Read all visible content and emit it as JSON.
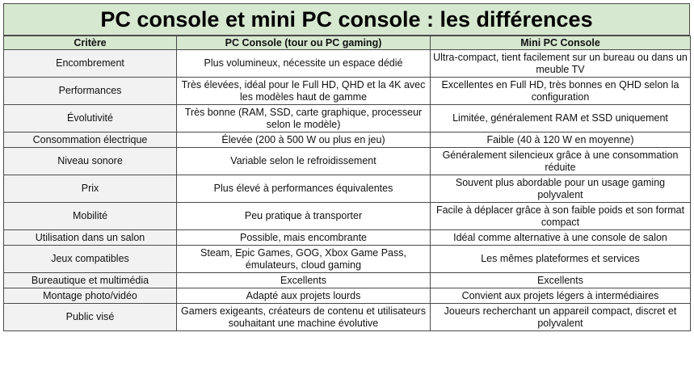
{
  "title": "PC console et mini PC console : les différences",
  "table": {
    "headers": [
      "Critère",
      "PC Console (tour ou PC gaming)",
      "Mini PC Console"
    ],
    "rows": [
      [
        "Encombrement",
        "Plus volumineux, nécessite un espace dédié",
        "Ultra-compact, tient facilement sur un bureau ou dans un meuble TV"
      ],
      [
        "Performances",
        "Très élevées, idéal pour le Full HD, QHD et la 4K avec les modèles haut de gamme",
        "Excellentes en Full HD, très bonnes en QHD selon la configuration"
      ],
      [
        "Évolutivité",
        "Très bonne (RAM, SSD, carte graphique, processeur selon le modèle)",
        "Limitée, généralement RAM et SSD uniquement"
      ],
      [
        "Consommation électrique",
        "Élevée (200 à 500 W ou plus en jeu)",
        "Faible (40 à 120 W en moyenne)"
      ],
      [
        "Niveau sonore",
        "Variable selon le refroidissement",
        "Généralement silencieux grâce à une consommation réduite"
      ],
      [
        "Prix",
        "Plus élevé à performances équivalentes",
        "Souvent plus abordable pour un usage gaming polyvalent"
      ],
      [
        "Mobilité",
        "Peu pratique à transporter",
        "Facile à déplacer grâce à son faible poids et son format compact"
      ],
      [
        "Utilisation dans un salon",
        "Possible, mais encombrante",
        "Idéal comme alternative à une console de salon"
      ],
      [
        "Jeux compatibles",
        "Steam, Epic Games, GOG, Xbox Game Pass, émulateurs, cloud gaming",
        "Les mêmes plateformes et services"
      ],
      [
        "Bureautique et multimédia",
        "Excellents",
        "Excellents"
      ],
      [
        "Montage photo/vidéo",
        "Adapté aux projets lourds",
        "Convient aux projets légers à intermédiaires"
      ],
      [
        "Public visé",
        "Gamers exigeants, créateurs de contenu et utilisateurs souhaitant une machine évolutive",
        "Joueurs recherchant un appareil compact, discret et polyvalent"
      ]
    ]
  },
  "colors": {
    "header_bg": "#d6e8cf",
    "first_col_bg": "#f2f2f2",
    "border": "#4a4a4a"
  }
}
